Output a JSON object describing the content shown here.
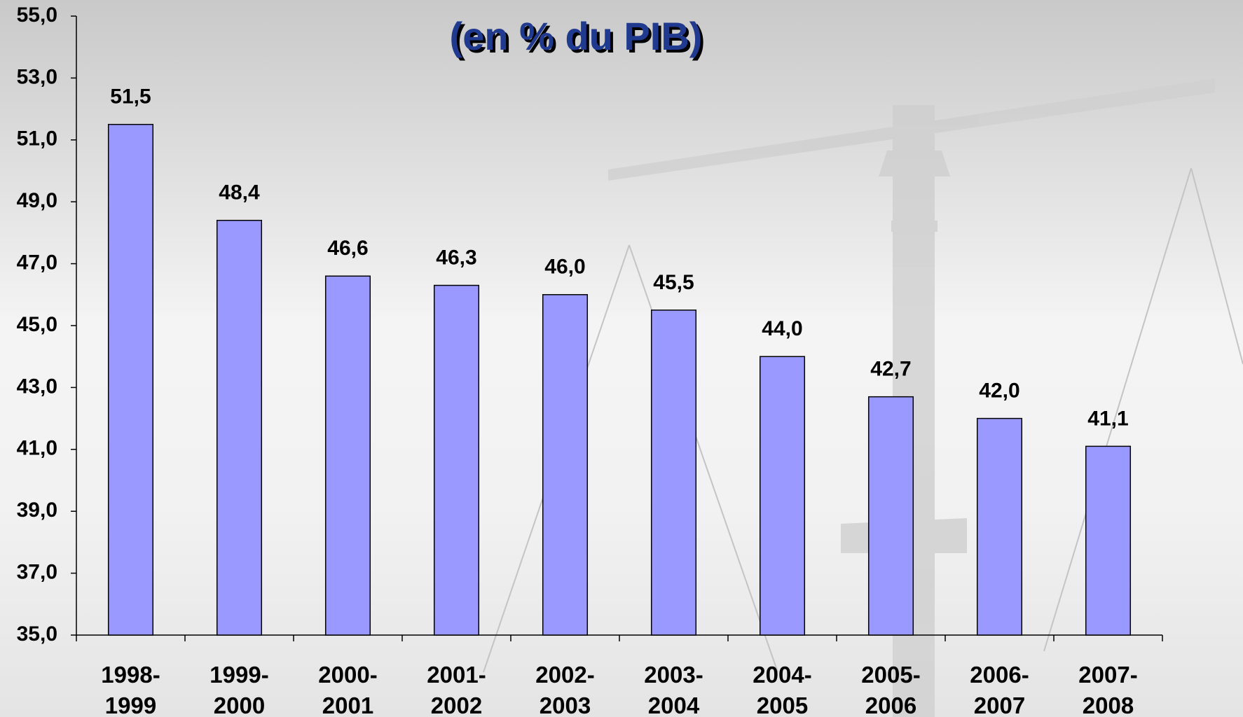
{
  "chart_data": {
    "type": "bar",
    "title": "(en % du PIB)",
    "categories": [
      "1998-\n1999",
      "1999-\n2000",
      "2000-\n2001",
      "2001-\n2002",
      "2002-\n2003",
      "2003-\n2004",
      "2004-\n2005",
      "2005-\n2006",
      "2006-\n2007",
      "2007-\n2008"
    ],
    "values": [
      51.5,
      48.4,
      46.6,
      46.3,
      46.0,
      45.5,
      44.0,
      42.7,
      42.0,
      41.1
    ],
    "value_labels": [
      "51,5",
      "48,4",
      "46,6",
      "46,3",
      "46,0",
      "45,5",
      "44,0",
      "42,7",
      "42,0",
      "41,1"
    ],
    "color": "#9999ff",
    "ylim": [
      35,
      55
    ],
    "yticks": [
      {
        "value": 35,
        "label": "35,0"
      },
      {
        "value": 37,
        "label": "37,0"
      },
      {
        "value": 39,
        "label": "39,0"
      },
      {
        "value": 41,
        "label": "41,0"
      },
      {
        "value": 43,
        "label": "43,0"
      },
      {
        "value": 45,
        "label": "45,0"
      },
      {
        "value": 47,
        "label": "47,0"
      },
      {
        "value": 49,
        "label": "49,0"
      },
      {
        "value": 51,
        "label": "51,0"
      },
      {
        "value": 53,
        "label": "53,0"
      },
      {
        "value": 55,
        "label": "55,0"
      }
    ],
    "grid": false
  }
}
